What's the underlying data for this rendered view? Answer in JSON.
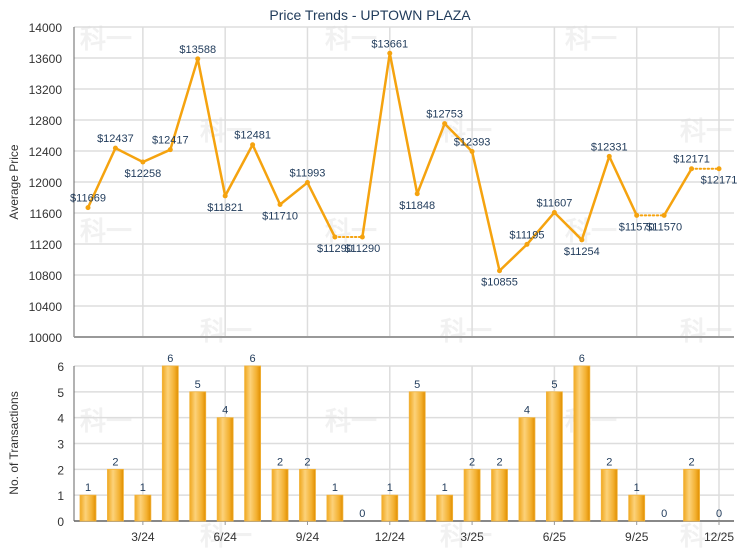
{
  "chart_data": [
    {
      "type": "line",
      "title": "Price Trends - UPTOWN PLAZA",
      "xlabel": "",
      "ylabel": "Average Price",
      "ylim": [
        10000,
        14000
      ],
      "yticks": [
        10000,
        10400,
        10800,
        11200,
        11600,
        12000,
        12400,
        12800,
        13200,
        13600,
        14000
      ],
      "grid": true,
      "series": [
        {
          "name": "Average Price",
          "color": "#f5a30f",
          "values": [
            11669,
            12437,
            12258,
            12417,
            13588,
            11821,
            12481,
            11710,
            11993,
            11290,
            11290,
            13661,
            11848,
            12753,
            12393,
            10855,
            11195,
            11607,
            11254,
            12331,
            11570,
            11570,
            12171,
            12171
          ],
          "labels": [
            "$11669",
            "$12437",
            "$12258",
            "$12417",
            "$13588",
            "$11821",
            "$12481",
            "$11710",
            "$11993",
            "$11290",
            "$11290",
            "$13661",
            "$11848",
            "$12753",
            "$12393",
            "$10855",
            "$11195",
            "$11607",
            "$11254",
            "$12331",
            "$11570",
            "$11570",
            "$12171",
            "$12171"
          ],
          "carried_forward": [
            false,
            false,
            false,
            false,
            false,
            false,
            false,
            false,
            false,
            false,
            true,
            false,
            false,
            false,
            false,
            false,
            false,
            false,
            false,
            false,
            false,
            true,
            false,
            true
          ]
        }
      ]
    },
    {
      "type": "bar",
      "title": "",
      "xlabel": "",
      "ylabel": "No. of Transactions",
      "ylim": [
        0,
        6
      ],
      "yticks": [
        0,
        1,
        2,
        3,
        4,
        5,
        6
      ],
      "grid": true,
      "tick_labels": [
        {
          "index": 2,
          "label": "3/24"
        },
        {
          "index": 5,
          "label": "6/24"
        },
        {
          "index": 8,
          "label": "9/24"
        },
        {
          "index": 11,
          "label": "12/24"
        },
        {
          "index": 14,
          "label": "3/25"
        },
        {
          "index": 17,
          "label": "6/25"
        },
        {
          "index": 20,
          "label": "9/25"
        },
        {
          "index": 23,
          "label": "12/25"
        }
      ],
      "series": [
        {
          "name": "No. of Transactions",
          "color": "#f5a30f",
          "values": [
            1,
            2,
            1,
            6,
            5,
            4,
            6,
            2,
            2,
            1,
            0,
            1,
            5,
            1,
            2,
            2,
            4,
            5,
            6,
            2,
            1,
            0,
            2,
            0
          ]
        }
      ]
    }
  ],
  "watermark": "科一",
  "colors": {
    "line": "#f5a30f",
    "bar_dark": "#e89a06",
    "bar_light": "#fcd27a",
    "label": "#1f3a5a",
    "grid": "#dddddd",
    "axis": "#999999"
  }
}
